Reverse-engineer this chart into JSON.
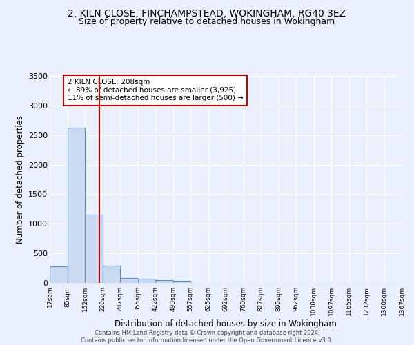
{
  "title": "2, KILN CLOSE, FINCHAMPSTEAD, WOKINGHAM, RG40 3EZ",
  "subtitle": "Size of property relative to detached houses in Wokingham",
  "xlabel": "Distribution of detached houses by size in Wokingham",
  "ylabel": "Number of detached properties",
  "bin_edges": [
    17,
    85,
    152,
    220,
    287,
    355,
    422,
    490,
    557,
    625,
    692,
    760,
    827,
    895,
    962,
    1030,
    1097,
    1165,
    1232,
    1300,
    1367
  ],
  "bar_heights": [
    275,
    2625,
    1150,
    290,
    85,
    75,
    50,
    40,
    0,
    0,
    0,
    0,
    0,
    0,
    0,
    0,
    0,
    0,
    0,
    0
  ],
  "bar_color": "#c9d9f0",
  "bar_edge_color": "#5b8fc9",
  "property_size": 208,
  "vline_color": "#cc0000",
  "annotation_text": "2 KILN CLOSE: 208sqm\n← 89% of detached houses are smaller (3,925)\n11% of semi-detached houses are larger (500) →",
  "annotation_box_color": "#ffffff",
  "annotation_box_edge": "#cc0000",
  "ylim": [
    0,
    3500
  ],
  "yticks": [
    0,
    500,
    1000,
    1500,
    2000,
    2500,
    3000,
    3500
  ],
  "footer_text": "Contains HM Land Registry data © Crown copyright and database right 2024.\nContains public sector information licensed under the Open Government Licence v3.0.",
  "bg_color": "#eaf0fb",
  "grid_color": "#ffffff",
  "title_fontsize": 10,
  "subtitle_fontsize": 9,
  "axis_fontsize": 8.5,
  "annotation_fontsize": 7.5,
  "footer_fontsize": 6
}
